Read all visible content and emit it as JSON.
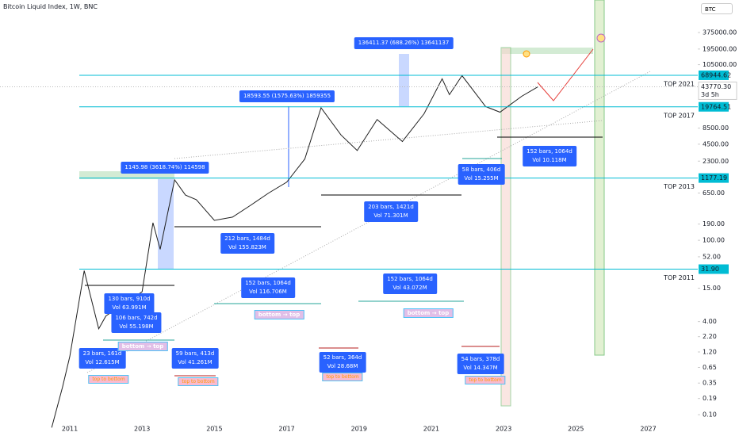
{
  "header": {
    "title": "Bitcoin Liquid Index, 1W, BNC",
    "symbol": "BTC"
  },
  "chart_data": {
    "type": "line",
    "log_scale": true,
    "x": [
      2010.5,
      2010.8,
      2011.0,
      2011.4,
      2011.8,
      2012.0,
      2012.5,
      2013.0,
      2013.3,
      2013.5,
      2013.9,
      2014.2,
      2014.5,
      2015.0,
      2015.5,
      2016.0,
      2016.5,
      2017.0,
      2017.5,
      2017.95,
      2018.5,
      2018.95,
      2019.5,
      2020.2,
      2020.8,
      2021.3,
      2021.5,
      2021.85,
      2022.5,
      2022.9,
      2023.5,
      2023.95
    ],
    "series": [
      {
        "name": "BTC",
        "color": "#1f1f1f",
        "values": [
          0.06,
          0.3,
          1,
          30,
          3,
          5,
          8,
          13,
          200,
          70,
          1100,
          600,
          500,
          220,
          250,
          400,
          650,
          1000,
          2500,
          19000,
          6500,
          3500,
          12000,
          5000,
          15000,
          60000,
          32000,
          68000,
          20000,
          16000,
          30000,
          43770.3
        ]
      }
    ],
    "xlim": [
      2009.07,
      2028.37
    ],
    "ylim": [
      0.043,
      1360000
    ],
    "xticks": [
      2011,
      2013,
      2015,
      2017,
      2019,
      2021,
      2023,
      2025,
      2027
    ],
    "yticks": [
      {
        "value": 375000,
        "label": "375000.00"
      },
      {
        "value": 195000,
        "label": "195000.00"
      },
      {
        "value": 105000,
        "label": "105000.00"
      },
      {
        "value": 8500,
        "label": "8500.00"
      },
      {
        "value": 4500,
        "label": "4500.00"
      },
      {
        "value": 2300,
        "label": "2300.00"
      },
      {
        "value": 650,
        "label": "650.00"
      },
      {
        "value": 190,
        "label": "190.00"
      },
      {
        "value": 100,
        "label": "100.00"
      },
      {
        "value": 52,
        "label": "52.00"
      },
      {
        "value": 15,
        "label": "15.00"
      },
      {
        "value": 4,
        "label": "4.00"
      },
      {
        "value": 2.2,
        "label": "2.20"
      },
      {
        "value": 1.2,
        "label": "1.20"
      },
      {
        "value": 0.65,
        "label": "0.65"
      },
      {
        "value": 0.35,
        "label": "0.35"
      },
      {
        "value": 0.19,
        "label": "0.19"
      },
      {
        "value": 0.1,
        "label": "0.10"
      }
    ],
    "levels": [
      {
        "name": "TOP 2021",
        "value": 68944.62,
        "label": "68944.62"
      },
      {
        "name": "TOP 2017",
        "value": 19764.51,
        "label": "19764.51"
      },
      {
        "name": "TOP 2013",
        "value": 1177.19,
        "label": "1177.19"
      },
      {
        "name": "TOP 2011",
        "value": 31.9,
        "label": "31.90"
      }
    ],
    "last_price": {
      "value": 43770.3,
      "label": "43770.30",
      "countdown": "3d 5h"
    }
  },
  "measures": [
    "1145.98 (3618.74%) 114598",
    "18593.55 (1575.63%) 1859355",
    "136411.37 (688.26%) 13641137"
  ],
  "bar_boxes": [
    [
      "212 bars, 1484d",
      "Vol 155.823M"
    ],
    [
      "203 bars, 1421d",
      "Vol 71.301M"
    ],
    [
      "152 bars, 1064d",
      "Vol 10.118M"
    ],
    [
      "58 bars, 406d",
      "Vol 15.255M"
    ],
    [
      "130 bars, 910d",
      "Vol 63.991M"
    ],
    [
      "106 bars, 742d",
      "Vol 55.198M"
    ],
    [
      "152 bars, 1064d",
      "Vol 116.706M"
    ],
    [
      "152 bars, 1064d",
      "Vol 43.072M"
    ],
    [
      "23 bars, 161d",
      "Vol 12.615M"
    ],
    [
      "59 bars, 413d",
      "Vol 41.261M"
    ],
    [
      "52 bars, 364d",
      "Vol 28.68M"
    ],
    [
      "54 bars, 378d",
      "Vol 14.347M"
    ]
  ],
  "tags": [
    "bottom → top",
    "bottom → top",
    "bottom → top",
    "top to bottom",
    "top to bottom",
    "top to bottom",
    "top to bottom"
  ]
}
